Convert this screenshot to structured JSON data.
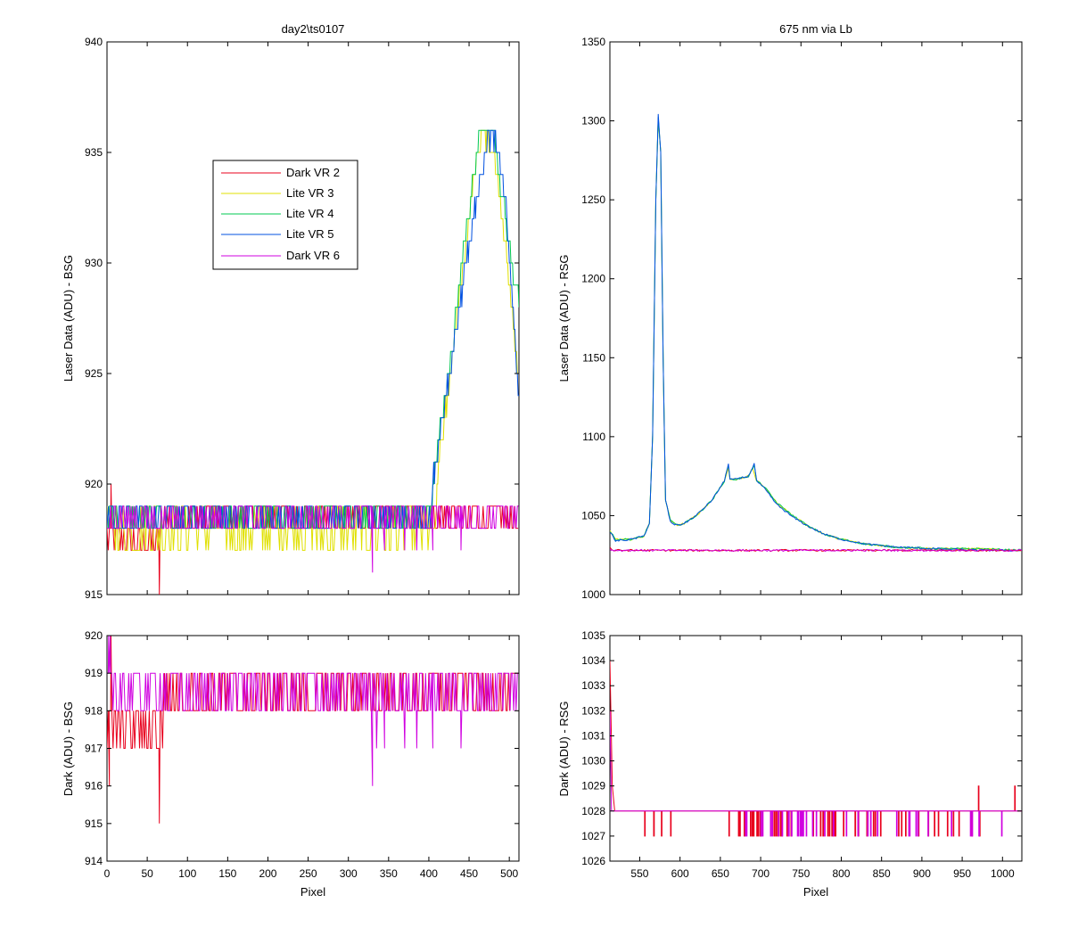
{
  "chart_data": [
    {
      "type": "line",
      "panel": "top-left",
      "title": "day2\\ts0107",
      "xlabel": "",
      "ylabel": "Laser Data (ADU) - BSG",
      "xlim": [
        0,
        512
      ],
      "ylim": [
        915,
        940
      ],
      "xticks": [],
      "yticks": [
        915,
        920,
        925,
        930,
        935,
        940
      ],
      "legend": {
        "placement": "upper-left-inside",
        "entries": [
          "Dark VR 2",
          "Lite VR 3",
          "Lite VR 4",
          "Lite VR 5",
          "Dark VR 6"
        ]
      },
      "series": [
        {
          "name": "Dark VR 2",
          "color": "#e8001c",
          "kind": "noise",
          "segments": [
            {
              "x": [
                0,
                70
              ],
              "levels": [
                917,
                918
              ],
              "spikes": [
                [
                  5,
                  920
                ],
                [
                  65,
                  915
                ]
              ]
            },
            {
              "x": [
                70,
                512
              ],
              "levels": [
                918,
                919
              ]
            }
          ]
        },
        {
          "name": "Lite VR 3",
          "color": "#e0e000",
          "kind": "peak",
          "baseline_levels": [
            917,
            918,
            919
          ],
          "rise_start": 410,
          "peak_x": 465,
          "peak_y": 936,
          "end_x": 512,
          "end_y": 925,
          "points": [
            [
              410,
              920
            ],
            [
              430,
              926
            ],
            [
              450,
              932
            ],
            [
              465,
              936
            ],
            [
              480,
              935
            ],
            [
              495,
              931
            ],
            [
              512,
              925
            ]
          ]
        },
        {
          "name": "Lite VR 4",
          "color": "#00c850",
          "kind": "peak",
          "baseline_levels": [
            918,
            919
          ],
          "rise_start": 405,
          "peak_x": 463,
          "peak_y": 936,
          "end_x": 512,
          "end_y": 928,
          "points": [
            [
              405,
              920
            ],
            [
              425,
              925
            ],
            [
              445,
              931
            ],
            [
              463,
              936
            ],
            [
              480,
              936
            ],
            [
              495,
              932
            ],
            [
              512,
              928
            ]
          ]
        },
        {
          "name": "Lite VR 5",
          "color": "#0050e0",
          "kind": "peak",
          "baseline_levels": [
            918,
            919
          ],
          "rise_start": 405,
          "peak_x": 480,
          "peak_y": 936,
          "end_x": 512,
          "end_y": 924,
          "points": [
            [
              405,
              920
            ],
            [
              430,
              926
            ],
            [
              455,
              932
            ],
            [
              470,
              935
            ],
            [
              480,
              936
            ],
            [
              495,
              933
            ],
            [
              512,
              924
            ]
          ]
        },
        {
          "name": "Dark VR 6",
          "color": "#d000e0",
          "kind": "noise",
          "segments": [
            {
              "x": [
                0,
                512
              ],
              "levels": [
                918,
                919
              ]
            }
          ],
          "dips": [
            [
              330,
              916
            ],
            [
              345,
              917
            ],
            [
              370,
              917
            ],
            [
              385,
              917
            ],
            [
              405,
              917
            ],
            [
              440,
              917
            ]
          ]
        }
      ]
    },
    {
      "type": "line",
      "panel": "top-right",
      "title": "675 nm via Lb",
      "xlabel": "",
      "ylabel": "Laser Data (ADU) - RSG",
      "xlim": [
        513,
        1024
      ],
      "ylim": [
        1000,
        1350
      ],
      "xticks": [],
      "yticks": [
        1000,
        1050,
        1100,
        1150,
        1200,
        1250,
        1300,
        1350
      ],
      "series": [
        {
          "name": "Lite VR 3",
          "color": "#e0e000",
          "points": [
            [
              513,
              1040
            ],
            [
              520,
              1035
            ],
            [
              540,
              1035
            ],
            [
              555,
              1037
            ],
            [
              562,
              1045
            ],
            [
              566,
              1100
            ],
            [
              570,
              1250
            ],
            [
              573,
              1302
            ],
            [
              576,
              1280
            ],
            [
              579,
              1150
            ],
            [
              582,
              1060
            ],
            [
              588,
              1047
            ],
            [
              595,
              1044
            ],
            [
              605,
              1045
            ],
            [
              620,
              1050
            ],
            [
              640,
              1060
            ],
            [
              655,
              1072
            ],
            [
              660,
              1080
            ],
            [
              662,
              1073
            ],
            [
              670,
              1073
            ],
            [
              685,
              1075
            ],
            [
              690,
              1080
            ],
            [
              695,
              1072
            ],
            [
              705,
              1068
            ],
            [
              720,
              1058
            ],
            [
              740,
              1050
            ],
            [
              760,
              1043
            ],
            [
              780,
              1038
            ],
            [
              800,
              1035
            ],
            [
              830,
              1032
            ],
            [
              870,
              1030
            ],
            [
              920,
              1029
            ],
            [
              970,
              1029
            ],
            [
              1024,
              1028
            ]
          ]
        },
        {
          "name": "Lite VR 4",
          "color": "#00c850",
          "points": [
            [
              513,
              1040
            ],
            [
              520,
              1035
            ],
            [
              540,
              1035
            ],
            [
              555,
              1037
            ],
            [
              562,
              1045
            ],
            [
              566,
              1100
            ],
            [
              570,
              1250
            ],
            [
              573,
              1302
            ],
            [
              576,
              1280
            ],
            [
              579,
              1150
            ],
            [
              582,
              1060
            ],
            [
              588,
              1047
            ],
            [
              595,
              1044
            ],
            [
              605,
              1045
            ],
            [
              620,
              1050
            ],
            [
              640,
              1060
            ],
            [
              655,
              1072
            ],
            [
              660,
              1082
            ],
            [
              662,
              1073
            ],
            [
              670,
              1073
            ],
            [
              685,
              1075
            ],
            [
              692,
              1082
            ],
            [
              695,
              1072
            ],
            [
              705,
              1068
            ],
            [
              720,
              1058
            ],
            [
              740,
              1050
            ],
            [
              760,
              1043
            ],
            [
              780,
              1038
            ],
            [
              800,
              1035
            ],
            [
              830,
              1032
            ],
            [
              870,
              1030
            ],
            [
              920,
              1029
            ],
            [
              970,
              1029
            ],
            [
              1024,
              1028
            ]
          ]
        },
        {
          "name": "Lite VR 5",
          "color": "#0050e0",
          "points": [
            [
              513,
              1040
            ],
            [
              520,
              1034
            ],
            [
              540,
              1035
            ],
            [
              555,
              1037
            ],
            [
              562,
              1045
            ],
            [
              566,
              1100
            ],
            [
              570,
              1250
            ],
            [
              573,
              1304
            ],
            [
              576,
              1280
            ],
            [
              579,
              1150
            ],
            [
              582,
              1060
            ],
            [
              588,
              1046
            ],
            [
              595,
              1044
            ],
            [
              605,
              1045
            ],
            [
              620,
              1050
            ],
            [
              640,
              1060
            ],
            [
              655,
              1072
            ],
            [
              660,
              1083
            ],
            [
              662,
              1073
            ],
            [
              670,
              1073
            ],
            [
              685,
              1075
            ],
            [
              692,
              1083
            ],
            [
              695,
              1072
            ],
            [
              705,
              1067
            ],
            [
              720,
              1057
            ],
            [
              740,
              1049
            ],
            [
              760,
              1043
            ],
            [
              780,
              1038
            ],
            [
              800,
              1035
            ],
            [
              830,
              1032
            ],
            [
              870,
              1030
            ],
            [
              920,
              1029
            ],
            [
              970,
              1028
            ],
            [
              1024,
              1028
            ]
          ]
        },
        {
          "name": "Dark VR 2",
          "color": "#e8001c",
          "points": [
            [
              513,
              1030
            ],
            [
              516,
              1028
            ],
            [
              1024,
              1028
            ]
          ]
        },
        {
          "name": "Dark VR 6",
          "color": "#d000e0",
          "points": [
            [
              513,
              1029
            ],
            [
              516,
              1028
            ],
            [
              1024,
              1028
            ]
          ]
        }
      ]
    },
    {
      "type": "line",
      "panel": "bottom-left",
      "title": "",
      "xlabel": "Pixel",
      "ylabel": "Dark (ADU) - BSG",
      "xlim": [
        0,
        512
      ],
      "ylim": [
        914,
        920
      ],
      "xticks": [
        0,
        50,
        100,
        150,
        200,
        250,
        300,
        350,
        400,
        450,
        500
      ],
      "yticks": [
        914,
        915,
        916,
        917,
        918,
        919,
        920
      ],
      "series": [
        {
          "name": "Dark VR 2",
          "color": "#e8001c",
          "kind": "noise",
          "segments": [
            {
              "x": [
                0,
                70
              ],
              "levels": [
                917,
                918
              ],
              "spikes": [
                [
                  3,
                  916
                ],
                [
                  5,
                  920
                ],
                [
                  65,
                  915
                ]
              ]
            },
            {
              "x": [
                70,
                512
              ],
              "levels": [
                918,
                919
              ]
            }
          ]
        },
        {
          "name": "Dark VR 6",
          "color": "#d000e0",
          "kind": "noise",
          "segments": [
            {
              "x": [
                0,
                512
              ],
              "levels": [
                918,
                919
              ]
            }
          ],
          "spikes": [
            [
              2,
              920
            ],
            [
              4,
              920
            ]
          ],
          "dips": [
            [
              330,
              916
            ],
            [
              335,
              917
            ],
            [
              345,
              917
            ],
            [
              370,
              917
            ],
            [
              385,
              917
            ],
            [
              405,
              917
            ],
            [
              440,
              917
            ]
          ]
        }
      ]
    },
    {
      "type": "line",
      "panel": "bottom-right",
      "title": "",
      "xlabel": "Pixel",
      "ylabel": "Dark (ADU) - RSG",
      "xlim": [
        513,
        1024
      ],
      "ylim": [
        1026,
        1035
      ],
      "xticks": [
        550,
        600,
        650,
        700,
        750,
        800,
        850,
        900,
        950,
        1000
      ],
      "yticks": [
        1026,
        1027,
        1028,
        1029,
        1030,
        1031,
        1032,
        1033,
        1034,
        1035
      ],
      "series": [
        {
          "name": "Dark VR 2",
          "color": "#e8001c",
          "baseline": 1028,
          "start_spike": [
            [
              513,
              1034
            ],
            [
              516,
              1029
            ],
            [
              519,
              1028
            ]
          ],
          "dips_ranges": [
            [
              540,
              610,
              4
            ],
            [
              655,
              980,
              48
            ]
          ],
          "spikes_up": [
            [
              970,
              1029
            ],
            [
              1015,
              1029
            ]
          ]
        },
        {
          "name": "Dark VR 6",
          "color": "#d000e0",
          "baseline": 1028,
          "start_spike": [
            [
              513,
              1032
            ],
            [
              515,
              1028
            ]
          ],
          "dips_ranges": [
            [
              680,
              1000,
              40
            ]
          ]
        }
      ]
    }
  ]
}
